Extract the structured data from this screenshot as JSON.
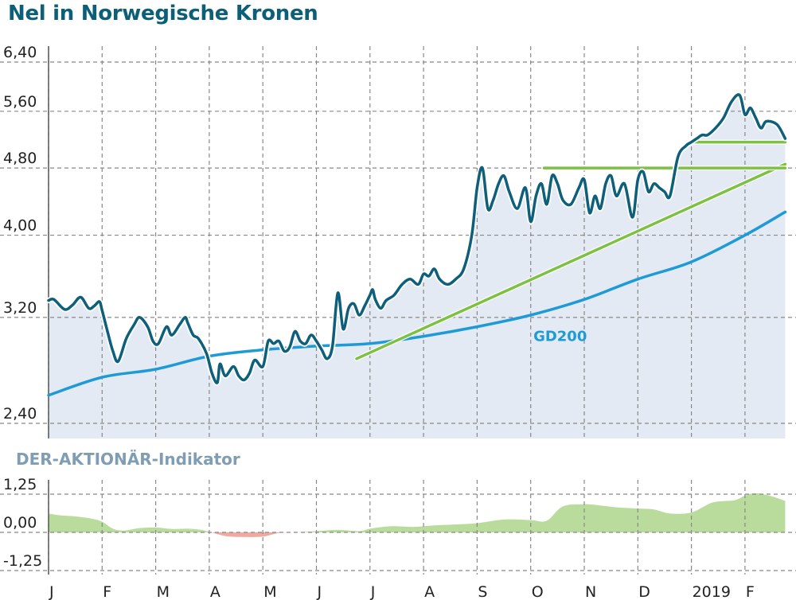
{
  "title": "Nel in Norwegische Kronen",
  "indicator_title": "DER-AKTIONÄR-Indikator",
  "colors": {
    "price": "#0e5f7a",
    "gd200": "#1e9bd7",
    "trend": "#7cc142",
    "area": "#e4eaf3",
    "ind_pos": "#b9dc9c",
    "ind_neg": "#f0a9a0",
    "grid": "#888888"
  },
  "chart_data": [
    {
      "type": "line",
      "title": "Nel in Norwegische Kronen",
      "yticks": [
        "6,40",
        "5,60",
        "4,80",
        "4,00",
        "3,20",
        "2,40"
      ],
      "ytick_values": [
        6.4,
        5.6,
        4.8,
        4.0,
        3.2,
        2.4
      ],
      "scale": "log",
      "ylim": [
        2.4,
        6.4
      ],
      "months": [
        "J",
        "F",
        "M",
        "A",
        "M",
        "J",
        "J",
        "A",
        "S",
        "O",
        "N",
        "D",
        "2019",
        "F"
      ],
      "gd200_label": "GD200",
      "series": [
        {
          "name": "Kurs",
          "t": [
            0,
            0.1,
            0.3,
            0.45,
            0.6,
            0.75,
            0.85,
            0.95,
            1.0,
            1.1,
            1.2,
            1.3,
            1.45,
            1.6,
            1.7,
            1.85,
            1.95,
            2.05,
            2.2,
            2.3,
            2.45,
            2.55,
            2.6,
            2.7,
            2.8,
            2.95,
            3.05,
            3.15,
            3.2,
            3.3,
            3.45,
            3.55,
            3.65,
            3.75,
            3.85,
            4.0,
            4.1,
            4.2,
            4.3,
            4.4,
            4.5,
            4.6,
            4.7,
            4.8,
            4.9,
            5.0,
            5.1,
            5.2,
            5.3,
            5.4,
            5.5,
            5.6,
            5.7,
            5.8,
            5.9,
            6.0,
            6.05,
            6.1,
            6.2,
            6.3,
            6.45,
            6.6,
            6.75,
            6.9,
            7.0,
            7.1,
            7.2,
            7.3,
            7.45,
            7.6,
            7.75,
            7.9,
            8.0,
            8.1,
            8.2,
            8.3,
            8.4,
            8.5,
            8.6,
            8.75,
            8.9,
            9.0,
            9.1,
            9.2,
            9.3,
            9.4,
            9.5,
            9.6,
            9.75,
            9.9,
            10.0,
            10.1,
            10.2,
            10.3,
            10.4,
            10.5,
            10.6,
            10.75,
            10.9,
            11.0,
            11.1,
            11.2,
            11.3,
            11.4,
            11.5,
            11.6,
            11.75,
            11.9,
            12.0,
            12.1,
            12.2,
            12.3,
            12.45,
            12.6,
            12.75,
            12.9,
            13.0,
            13.1,
            13.2,
            13.3,
            13.4,
            13.6,
            13.75
          ],
          "values": [
            3.35,
            3.36,
            3.27,
            3.31,
            3.38,
            3.28,
            3.3,
            3.34,
            3.26,
            3.08,
            2.92,
            2.84,
            3.02,
            3.14,
            3.2,
            3.12,
            3.0,
            2.98,
            3.12,
            3.05,
            3.14,
            3.2,
            3.15,
            3.05,
            3.02,
            2.9,
            2.75,
            2.68,
            2.82,
            2.73,
            2.8,
            2.73,
            2.7,
            2.75,
            2.85,
            2.8,
            3.0,
            2.98,
            3.0,
            2.92,
            2.95,
            3.08,
            3.0,
            2.98,
            3.05,
            3.0,
            2.93,
            2.86,
            2.96,
            3.42,
            3.1,
            3.28,
            3.32,
            3.22,
            3.3,
            3.4,
            3.45,
            3.36,
            3.28,
            3.35,
            3.4,
            3.5,
            3.55,
            3.5,
            3.6,
            3.58,
            3.65,
            3.55,
            3.5,
            3.55,
            3.65,
            4.0,
            4.55,
            4.8,
            4.3,
            4.4,
            4.6,
            4.7,
            4.5,
            4.3,
            4.55,
            4.15,
            4.45,
            4.6,
            4.35,
            4.7,
            4.6,
            4.4,
            4.35,
            4.55,
            4.65,
            4.25,
            4.45,
            4.3,
            4.6,
            4.7,
            4.45,
            4.6,
            4.2,
            4.65,
            4.75,
            4.5,
            4.6,
            4.55,
            4.5,
            4.45,
            4.95,
            5.1,
            5.15,
            5.2,
            5.25,
            5.25,
            5.35,
            5.5,
            5.75,
            5.85,
            5.55,
            5.65,
            5.5,
            5.35,
            5.45,
            5.4,
            5.2
          ]
        },
        {
          "name": "GD200",
          "t": [
            0,
            1,
            2,
            3,
            4,
            5,
            6,
            7,
            8,
            9,
            10,
            11,
            12,
            13,
            13.75
          ],
          "values": [
            2.59,
            2.72,
            2.78,
            2.88,
            2.93,
            2.96,
            2.98,
            3.04,
            3.12,
            3.22,
            3.36,
            3.55,
            3.72,
            4.0,
            4.26
          ]
        },
        {
          "name": "Trendlinie",
          "t": [
            5.75,
            13.75
          ],
          "values": [
            2.86,
            4.85
          ]
        },
        {
          "name": "Widerstand 1",
          "t": [
            9.25,
            13.75
          ],
          "values": [
            4.8,
            4.8
          ]
        },
        {
          "name": "Widerstand 2",
          "t": [
            12.0,
            13.75
          ],
          "values": [
            5.15,
            5.15
          ]
        }
      ]
    },
    {
      "type": "area",
      "title": "DER-AKTIONÄR-Indikator",
      "yticks": [
        "1,25",
        "0,00",
        "-1,25"
      ],
      "ytick_values": [
        1.25,
        0.0,
        -1.25
      ],
      "ylim": [
        -1.25,
        1.25
      ],
      "months": [
        "J",
        "F",
        "M",
        "A",
        "M",
        "J",
        "J",
        "A",
        "S",
        "O",
        "N",
        "D",
        "2019",
        "F"
      ],
      "series": [
        {
          "name": "Indikator",
          "t": [
            0,
            0.2,
            0.5,
            0.8,
            1.0,
            1.2,
            1.4,
            1.7,
            2.0,
            2.3,
            2.6,
            2.85,
            3.0,
            3.3,
            3.6,
            4.0,
            4.3,
            4.6,
            5.0,
            5.4,
            5.8,
            6.0,
            6.4,
            6.8,
            7.2,
            7.6,
            8.0,
            8.5,
            9.0,
            9.3,
            9.6,
            10.0,
            10.3,
            10.6,
            11.0,
            11.3,
            11.6,
            12.0,
            12.4,
            12.8,
            13.0,
            13.2,
            13.5,
            13.75
          ],
          "values": [
            0.62,
            0.56,
            0.52,
            0.45,
            0.35,
            0.12,
            0.06,
            0.14,
            0.16,
            0.11,
            0.12,
            0.08,
            0.02,
            -0.12,
            -0.15,
            -0.14,
            -0.02,
            0.0,
            0.04,
            0.08,
            0.04,
            0.12,
            0.2,
            0.18,
            0.23,
            0.26,
            0.3,
            0.42,
            0.4,
            0.38,
            0.85,
            0.92,
            0.88,
            0.82,
            0.78,
            0.75,
            0.62,
            0.65,
            0.98,
            1.05,
            1.2,
            1.28,
            1.18,
            1.03
          ]
        }
      ]
    }
  ]
}
